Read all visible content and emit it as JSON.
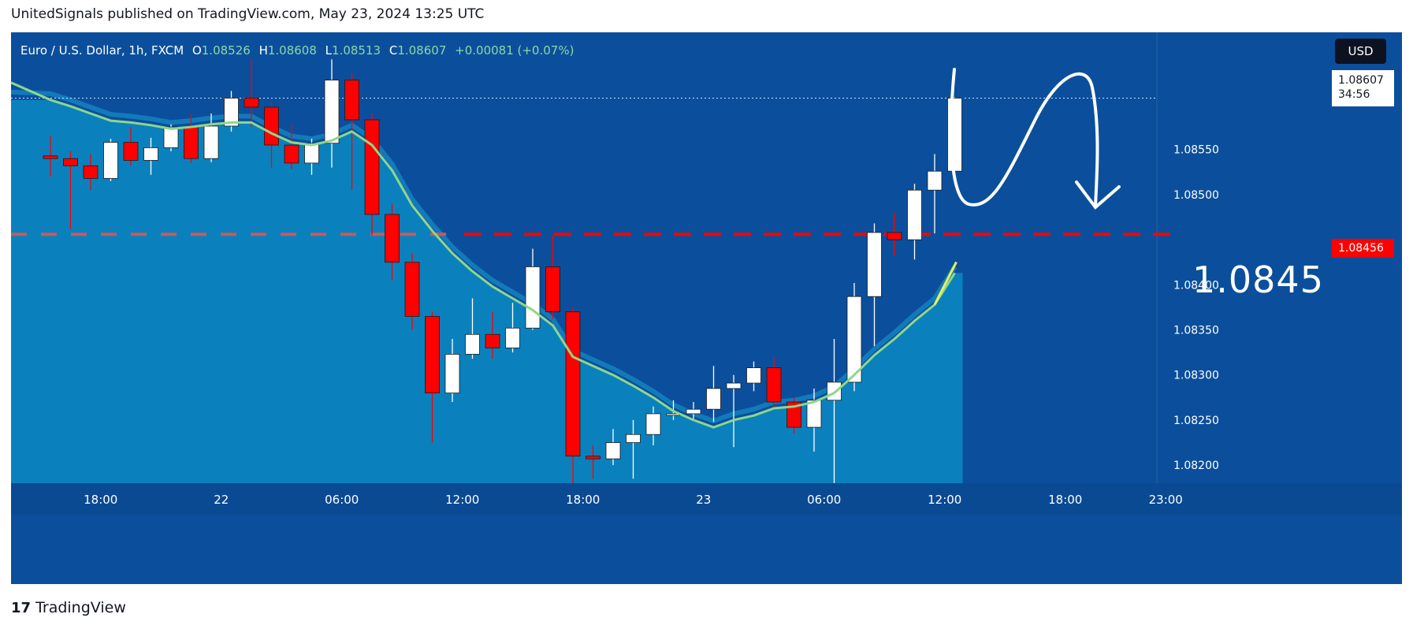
{
  "header": {
    "published_text": "UnitedSignals published on TradingView.com, May 23, 2024 13:25 UTC"
  },
  "legend": {
    "symbol": "Euro / U.S. Dollar, 1h, FXCM",
    "o_label": "O",
    "o_value": "1.08526",
    "h_label": "H",
    "h_value": "1.08608",
    "l_label": "L",
    "l_value": "1.08513",
    "c_label": "C",
    "c_value": "1.08607",
    "change": "+0.00081 (+0.07%)"
  },
  "toolbar": {
    "currency_label": "USD"
  },
  "last_price": {
    "price": "1.08607",
    "countdown": "34:56"
  },
  "level": {
    "price_tag": "1.08456",
    "annotation": "1.0845"
  },
  "footer": {
    "brand_logo": "17",
    "brand": "TradingView"
  },
  "colors": {
    "background": "#0b4f9c",
    "area": "#0b84bf",
    "bull": "#ffffff",
    "bear": "#ff0000",
    "ema": "#8fd68a",
    "level_line": "#ff0000"
  },
  "chart_data": {
    "type": "candlestick",
    "ylim": [
      1.0818,
      1.0868
    ],
    "y_ticks": [
      "1.08550",
      "1.08500",
      "1.08400",
      "1.08350",
      "1.08300",
      "1.08250",
      "1.08200"
    ],
    "x_ticks": [
      {
        "label": "18:00",
        "i": 2.5
      },
      {
        "label": "22",
        "i": 8.5
      },
      {
        "label": "06:00",
        "i": 14.5
      },
      {
        "label": "12:00",
        "i": 20.5
      },
      {
        "label": "18:00",
        "i": 26.5
      },
      {
        "label": "23",
        "i": 32.5
      },
      {
        "label": "06:00",
        "i": 38.5
      },
      {
        "label": "12:00",
        "i": 44.5
      },
      {
        "label": "18:00",
        "i": 50.5
      },
      {
        "label": "23:00",
        "i": 55.5
      }
    ],
    "candles": [
      {
        "i": 0,
        "o": 1.08543,
        "h": 1.08565,
        "l": 1.0852,
        "c": 1.0854
      },
      {
        "i": 1,
        "o": 1.0854,
        "h": 1.08548,
        "l": 1.08462,
        "c": 1.08532
      },
      {
        "i": 2,
        "o": 1.08532,
        "h": 1.08545,
        "l": 1.08505,
        "c": 1.08518
      },
      {
        "i": 3,
        "o": 1.08518,
        "h": 1.08562,
        "l": 1.08515,
        "c": 1.08558
      },
      {
        "i": 4,
        "o": 1.08558,
        "h": 1.08575,
        "l": 1.08532,
        "c": 1.08538
      },
      {
        "i": 5,
        "o": 1.08538,
        "h": 1.08563,
        "l": 1.08522,
        "c": 1.08552
      },
      {
        "i": 6,
        "o": 1.08552,
        "h": 1.08578,
        "l": 1.08548,
        "c": 1.08575
      },
      {
        "i": 7,
        "o": 1.08575,
        "h": 1.0859,
        "l": 1.08535,
        "c": 1.0854
      },
      {
        "i": 8,
        "o": 1.0854,
        "h": 1.0859,
        "l": 1.08536,
        "c": 1.08576
      },
      {
        "i": 9,
        "o": 1.08576,
        "h": 1.08615,
        "l": 1.0857,
        "c": 1.08607
      },
      {
        "i": 10,
        "o": 1.08607,
        "h": 1.0865,
        "l": 1.08575,
        "c": 1.08597
      },
      {
        "i": 11,
        "o": 1.08597,
        "h": 1.08603,
        "l": 1.0853,
        "c": 1.08555
      },
      {
        "i": 12,
        "o": 1.08555,
        "h": 1.08578,
        "l": 1.08528,
        "c": 1.08535
      },
      {
        "i": 13,
        "o": 1.08535,
        "h": 1.08562,
        "l": 1.08522,
        "c": 1.08557
      },
      {
        "i": 14,
        "o": 1.08557,
        "h": 1.0865,
        "l": 1.0853,
        "c": 1.08627
      },
      {
        "i": 15,
        "o": 1.08627,
        "h": 1.08635,
        "l": 1.08505,
        "c": 1.08583
      },
      {
        "i": 16,
        "o": 1.08583,
        "h": 1.0859,
        "l": 1.08455,
        "c": 1.08478
      },
      {
        "i": 17,
        "o": 1.08478,
        "h": 1.0849,
        "l": 1.08405,
        "c": 1.08425
      },
      {
        "i": 18,
        "o": 1.08425,
        "h": 1.08435,
        "l": 1.0835,
        "c": 1.08365
      },
      {
        "i": 19,
        "o": 1.08365,
        "h": 1.0837,
        "l": 1.08225,
        "c": 1.0828
      },
      {
        "i": 20,
        "o": 1.0828,
        "h": 1.0834,
        "l": 1.0827,
        "c": 1.08323
      },
      {
        "i": 21,
        "o": 1.08323,
        "h": 1.08385,
        "l": 1.08318,
        "c": 1.08345
      },
      {
        "i": 22,
        "o": 1.08345,
        "h": 1.0837,
        "l": 1.08318,
        "c": 1.0833
      },
      {
        "i": 23,
        "o": 1.0833,
        "h": 1.0838,
        "l": 1.08325,
        "c": 1.08352
      },
      {
        "i": 24,
        "o": 1.08352,
        "h": 1.0844,
        "l": 1.0835,
        "c": 1.0842
      },
      {
        "i": 25,
        "o": 1.0842,
        "h": 1.08455,
        "l": 1.08362,
        "c": 1.0837
      },
      {
        "i": 26,
        "o": 1.0837,
        "h": 1.08375,
        "l": 1.0818,
        "c": 1.0821
      },
      {
        "i": 27,
        "o": 1.0821,
        "h": 1.08222,
        "l": 1.08185,
        "c": 1.08207
      },
      {
        "i": 28,
        "o": 1.08207,
        "h": 1.0824,
        "l": 1.082,
        "c": 1.08225
      },
      {
        "i": 29,
        "o": 1.08225,
        "h": 1.0825,
        "l": 1.08185,
        "c": 1.08234
      },
      {
        "i": 30,
        "o": 1.08234,
        "h": 1.08265,
        "l": 1.08222,
        "c": 1.08257
      },
      {
        "i": 31,
        "o": 1.08257,
        "h": 1.08272,
        "l": 1.0825,
        "c": 1.08257
      },
      {
        "i": 32,
        "o": 1.08257,
        "h": 1.0827,
        "l": 1.0825,
        "c": 1.08262
      },
      {
        "i": 33,
        "o": 1.08262,
        "h": 1.0831,
        "l": 1.08248,
        "c": 1.08285
      },
      {
        "i": 34,
        "o": 1.08285,
        "h": 1.083,
        "l": 1.0822,
        "c": 1.08291
      },
      {
        "i": 35,
        "o": 1.08291,
        "h": 1.08315,
        "l": 1.08282,
        "c": 1.08308
      },
      {
        "i": 36,
        "o": 1.08308,
        "h": 1.0832,
        "l": 1.08265,
        "c": 1.0827
      },
      {
        "i": 37,
        "o": 1.0827,
        "h": 1.08275,
        "l": 1.08235,
        "c": 1.08242
      },
      {
        "i": 38,
        "o": 1.08242,
        "h": 1.08285,
        "l": 1.08215,
        "c": 1.08272
      },
      {
        "i": 39,
        "o": 1.08272,
        "h": 1.0834,
        "l": 1.0818,
        "c": 1.08292
      },
      {
        "i": 40,
        "o": 1.08292,
        "h": 1.08402,
        "l": 1.08282,
        "c": 1.08387
      },
      {
        "i": 41,
        "o": 1.08387,
        "h": 1.08468,
        "l": 1.08332,
        "c": 1.08458
      },
      {
        "i": 42,
        "o": 1.08458,
        "h": 1.0848,
        "l": 1.08432,
        "c": 1.0845
      },
      {
        "i": 43,
        "o": 1.0845,
        "h": 1.08512,
        "l": 1.08428,
        "c": 1.08505
      },
      {
        "i": 44,
        "o": 1.08505,
        "h": 1.08545,
        "l": 1.08457,
        "c": 1.08526
      },
      {
        "i": 45,
        "o": 1.08526,
        "h": 1.08608,
        "l": 1.08513,
        "c": 1.08607
      }
    ],
    "ema": [
      1.08605,
      1.08598,
      1.0859,
      1.08582,
      1.0858,
      1.08577,
      1.08573,
      1.08575,
      1.08578,
      1.0858,
      1.0858,
      1.08568,
      1.08558,
      1.08555,
      1.0856,
      1.0857,
      1.08555,
      1.08527,
      1.08488,
      1.0846,
      1.08435,
      1.08415,
      1.08398,
      1.08385,
      1.08372,
      1.08355,
      1.0832,
      1.0831,
      1.083,
      1.08288,
      1.08275,
      1.0826,
      1.0825,
      1.08242,
      1.0825,
      1.08255,
      1.08263,
      1.08265,
      1.0827,
      1.0828,
      1.083,
      1.08322,
      1.0834,
      1.0836,
      1.08378,
      1.08413
    ],
    "level": 1.08456
  }
}
